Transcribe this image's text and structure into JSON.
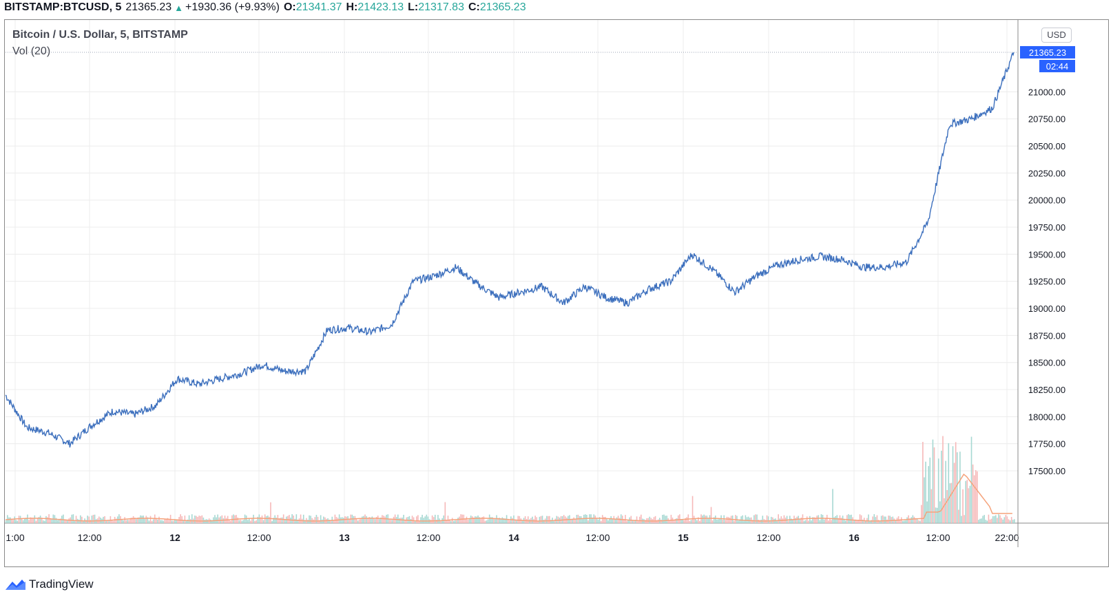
{
  "header": {
    "symbol": "BITSTAMP:BTCUSD, 5",
    "last": "21365.23",
    "change": "+1930.36 (+9.93%)",
    "open_label": "O:",
    "open": "21341.37",
    "high_label": "H:",
    "high": "21423.13",
    "low_label": "L:",
    "low": "21317.83",
    "close_label": "C:",
    "close": "21365.23"
  },
  "legend": {
    "title": "Bitcoin / U.S. Dollar, 5, BITSTAMP",
    "volume": "Vol (20)"
  },
  "price_axis": {
    "currency_button": "USD",
    "last_price_label": "21365.23",
    "countdown": "02:44",
    "ticks": [
      "21000.00",
      "20750.00",
      "20500.00",
      "20250.00",
      "20000.00",
      "19750.00",
      "19500.00",
      "19250.00",
      "19000.00",
      "18750.00",
      "18500.00",
      "18250.00",
      "18000.00",
      "17750.00",
      "17500.00"
    ]
  },
  "time_axis": {
    "ticks": [
      "1:00",
      "12:00",
      "12",
      "12:00",
      "13",
      "12:00",
      "14",
      "12:00",
      "15",
      "12:00",
      "16",
      "12:00",
      "22:00"
    ]
  },
  "brand": "TradingView",
  "colors": {
    "price_line": "#3c6fbd",
    "volume_ma": "#f5a27a",
    "volume_up": "#a6d8d2",
    "volume_down": "#f6b8b8",
    "accent": "#2962ff",
    "up_text": "#26a69a"
  },
  "chart_data": {
    "type": "line",
    "title": "Bitcoin / U.S. Dollar, 5, BITSTAMP",
    "xlabel": "",
    "ylabel": "",
    "ylim": [
      17400,
      21600
    ],
    "grid": true,
    "x": [
      "11 01:00",
      "11 06:00",
      "11 09:00",
      "11 12:00",
      "11 15:00",
      "11 18:00",
      "11 21:00",
      "12 00:00",
      "12 03:00",
      "12 06:00",
      "12 09:00",
      "12 12:00",
      "12 15:00",
      "12 18:00",
      "12 21:00",
      "13 00:00",
      "13 03:00",
      "13 06:00",
      "13 09:00",
      "13 12:00",
      "13 15:00",
      "13 18:00",
      "13 21:00",
      "14 00:00",
      "14 03:00",
      "14 06:00",
      "14 09:00",
      "14 12:00",
      "14 15:00",
      "14 18:00",
      "14 21:00",
      "15 00:00",
      "15 03:00",
      "15 06:00",
      "15 09:00",
      "15 12:00",
      "15 15:00",
      "15 18:00",
      "15 21:00",
      "16 00:00",
      "16 03:00",
      "16 06:00",
      "16 09:00",
      "16 12:00",
      "16 15:00",
      "16 18:00",
      "16 21:00",
      "16 22:00"
    ],
    "series": [
      {
        "values": [
          18200,
          17900,
          17850,
          17750,
          17920,
          18050,
          18020,
          18100,
          18350,
          18300,
          18350,
          18400,
          18480,
          18420,
          18420,
          18800,
          18820,
          18780,
          18850,
          19250,
          19300,
          19380,
          19220,
          19100,
          19150,
          19200,
          19050,
          19200,
          19100,
          19050,
          19180,
          19250,
          19500,
          19350,
          19150,
          19300,
          19400,
          19450,
          19480,
          19450,
          19380,
          19380,
          19430,
          19800,
          20700,
          20750,
          20850,
          21365
        ]
      }
    ]
  }
}
